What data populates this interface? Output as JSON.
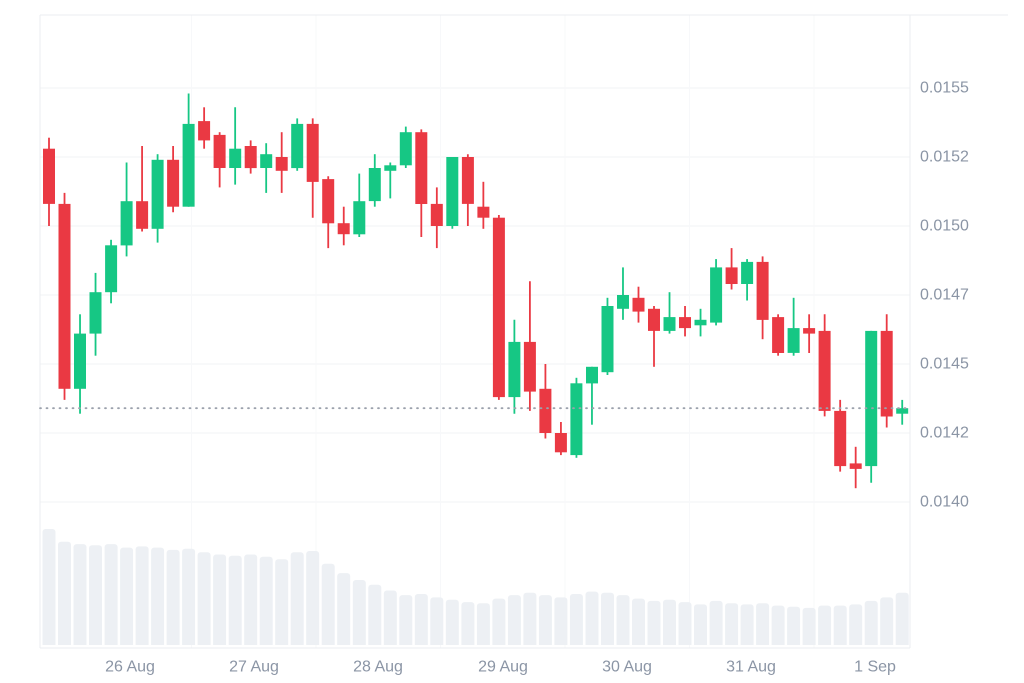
{
  "colors": {
    "up": "#16c784",
    "down": "#ea3943",
    "volume": "#edf0f4",
    "grid": "#f2f3f5",
    "grid_faint": "#f7f8fa",
    "border": "#ebedf0",
    "axis_text": "#8b95a5",
    "dotted_line": "#9ba1ac",
    "background": "#ffffff"
  },
  "chart_data": {
    "type": "candlestick",
    "title": "",
    "xlabel": "",
    "ylabel": "",
    "grid": "horizontal",
    "legend": "none",
    "x_labels": [
      "26 Aug",
      "27 Aug",
      "28 Aug",
      "29 Aug",
      "30 Aug",
      "31 Aug",
      "1 Sep"
    ],
    "y_tick_labels": [
      "0.0155",
      "0.0152",
      "0.0150",
      "0.0147",
      "0.0145",
      "0.0142",
      "0.0140"
    ],
    "y_tick_prices": [
      0.0155,
      0.01525,
      0.015,
      0.01475,
      0.0145,
      0.01425,
      0.014
    ],
    "ylim": [
      0.014,
      0.0155
    ],
    "candles_per_day": 8,
    "current_price": 0.01434,
    "current_price_line_style": "dotted",
    "volume_pane": "relative_heights_normalized_to_max",
    "candles": [
      {
        "o": 0.01528,
        "h": 0.01532,
        "l": 0.015,
        "c": 0.01508,
        "v": 1.0
      },
      {
        "o": 0.01508,
        "h": 0.01512,
        "l": 0.01437,
        "c": 0.01441,
        "v": 0.89
      },
      {
        "o": 0.01441,
        "h": 0.01468,
        "l": 0.01432,
        "c": 0.01461,
        "v": 0.87
      },
      {
        "o": 0.01461,
        "h": 0.01483,
        "l": 0.01453,
        "c": 0.01476,
        "v": 0.86
      },
      {
        "o": 0.01476,
        "h": 0.01495,
        "l": 0.01472,
        "c": 0.01493,
        "v": 0.87
      },
      {
        "o": 0.01493,
        "h": 0.01523,
        "l": 0.01489,
        "c": 0.01509,
        "v": 0.84
      },
      {
        "o": 0.01509,
        "h": 0.01529,
        "l": 0.01498,
        "c": 0.01499,
        "v": 0.85
      },
      {
        "o": 0.01499,
        "h": 0.01526,
        "l": 0.01494,
        "c": 0.01524,
        "v": 0.84
      },
      {
        "o": 0.01524,
        "h": 0.01529,
        "l": 0.01505,
        "c": 0.01507,
        "v": 0.82
      },
      {
        "o": 0.01507,
        "h": 0.01548,
        "l": 0.01507,
        "c": 0.01537,
        "v": 0.83
      },
      {
        "o": 0.01538,
        "h": 0.01543,
        "l": 0.01528,
        "c": 0.01531,
        "v": 0.8
      },
      {
        "o": 0.01533,
        "h": 0.01534,
        "l": 0.01514,
        "c": 0.01521,
        "v": 0.78
      },
      {
        "o": 0.01521,
        "h": 0.01543,
        "l": 0.01515,
        "c": 0.01528,
        "v": 0.77
      },
      {
        "o": 0.01529,
        "h": 0.01531,
        "l": 0.01519,
        "c": 0.01521,
        "v": 0.78
      },
      {
        "o": 0.01521,
        "h": 0.0153,
        "l": 0.01512,
        "c": 0.01526,
        "v": 0.76
      },
      {
        "o": 0.01525,
        "h": 0.01534,
        "l": 0.01512,
        "c": 0.0152,
        "v": 0.74
      },
      {
        "o": 0.01521,
        "h": 0.01539,
        "l": 0.0152,
        "c": 0.01537,
        "v": 0.8
      },
      {
        "o": 0.01537,
        "h": 0.01539,
        "l": 0.01503,
        "c": 0.01516,
        "v": 0.81
      },
      {
        "o": 0.01517,
        "h": 0.01518,
        "l": 0.01492,
        "c": 0.01501,
        "v": 0.7
      },
      {
        "o": 0.01501,
        "h": 0.01507,
        "l": 0.01493,
        "c": 0.01497,
        "v": 0.62
      },
      {
        "o": 0.01497,
        "h": 0.01519,
        "l": 0.01496,
        "c": 0.01509,
        "v": 0.56
      },
      {
        "o": 0.01509,
        "h": 0.01526,
        "l": 0.01507,
        "c": 0.01521,
        "v": 0.52
      },
      {
        "o": 0.0152,
        "h": 0.01523,
        "l": 0.0151,
        "c": 0.01522,
        "v": 0.47
      },
      {
        "o": 0.01522,
        "h": 0.01536,
        "l": 0.01521,
        "c": 0.01534,
        "v": 0.43
      },
      {
        "o": 0.01534,
        "h": 0.01535,
        "l": 0.01496,
        "c": 0.01508,
        "v": 0.44
      },
      {
        "o": 0.01508,
        "h": 0.01514,
        "l": 0.01492,
        "c": 0.015,
        "v": 0.41
      },
      {
        "o": 0.015,
        "h": 0.01525,
        "l": 0.01499,
        "c": 0.01525,
        "v": 0.39
      },
      {
        "o": 0.01525,
        "h": 0.01526,
        "l": 0.015,
        "c": 0.01508,
        "v": 0.37
      },
      {
        "o": 0.01507,
        "h": 0.01516,
        "l": 0.01499,
        "c": 0.01503,
        "v": 0.36
      },
      {
        "o": 0.01503,
        "h": 0.01504,
        "l": 0.01437,
        "c": 0.01438,
        "v": 0.4
      },
      {
        "o": 0.01438,
        "h": 0.01466,
        "l": 0.01432,
        "c": 0.01458,
        "v": 0.43
      },
      {
        "o": 0.01458,
        "h": 0.0148,
        "l": 0.01433,
        "c": 0.0144,
        "v": 0.45
      },
      {
        "o": 0.01441,
        "h": 0.0145,
        "l": 0.01423,
        "c": 0.01425,
        "v": 0.43
      },
      {
        "o": 0.01425,
        "h": 0.01429,
        "l": 0.01417,
        "c": 0.01418,
        "v": 0.41
      },
      {
        "o": 0.01417,
        "h": 0.01445,
        "l": 0.01416,
        "c": 0.01443,
        "v": 0.44
      },
      {
        "o": 0.01443,
        "h": 0.01449,
        "l": 0.01428,
        "c": 0.01449,
        "v": 0.46
      },
      {
        "o": 0.01447,
        "h": 0.01474,
        "l": 0.01446,
        "c": 0.01471,
        "v": 0.45
      },
      {
        "o": 0.0147,
        "h": 0.01485,
        "l": 0.01466,
        "c": 0.01475,
        "v": 0.43
      },
      {
        "o": 0.01474,
        "h": 0.01478,
        "l": 0.01465,
        "c": 0.01469,
        "v": 0.4
      },
      {
        "o": 0.0147,
        "h": 0.01471,
        "l": 0.01449,
        "c": 0.01462,
        "v": 0.38
      },
      {
        "o": 0.01462,
        "h": 0.01476,
        "l": 0.01461,
        "c": 0.01467,
        "v": 0.39
      },
      {
        "o": 0.01467,
        "h": 0.01471,
        "l": 0.0146,
        "c": 0.01463,
        "v": 0.37
      },
      {
        "o": 0.01464,
        "h": 0.0147,
        "l": 0.0146,
        "c": 0.01466,
        "v": 0.35
      },
      {
        "o": 0.01465,
        "h": 0.01488,
        "l": 0.01464,
        "c": 0.01485,
        "v": 0.38
      },
      {
        "o": 0.01485,
        "h": 0.01492,
        "l": 0.01477,
        "c": 0.01479,
        "v": 0.36
      },
      {
        "o": 0.01479,
        "h": 0.01488,
        "l": 0.01473,
        "c": 0.01487,
        "v": 0.35
      },
      {
        "o": 0.01487,
        "h": 0.01489,
        "l": 0.01459,
        "c": 0.01466,
        "v": 0.36
      },
      {
        "o": 0.01467,
        "h": 0.01468,
        "l": 0.01453,
        "c": 0.01454,
        "v": 0.34
      },
      {
        "o": 0.01454,
        "h": 0.01474,
        "l": 0.01453,
        "c": 0.01463,
        "v": 0.33
      },
      {
        "o": 0.01463,
        "h": 0.01468,
        "l": 0.01454,
        "c": 0.01461,
        "v": 0.32
      },
      {
        "o": 0.01462,
        "h": 0.01468,
        "l": 0.01431,
        "c": 0.01433,
        "v": 0.34
      },
      {
        "o": 0.01433,
        "h": 0.01437,
        "l": 0.01411,
        "c": 0.01413,
        "v": 0.34
      },
      {
        "o": 0.01414,
        "h": 0.0142,
        "l": 0.01405,
        "c": 0.01412,
        "v": 0.35
      },
      {
        "o": 0.01413,
        "h": 0.01462,
        "l": 0.01407,
        "c": 0.01462,
        "v": 0.38
      },
      {
        "o": 0.01462,
        "h": 0.01468,
        "l": 0.01427,
        "c": 0.01431,
        "v": 0.41
      },
      {
        "o": 0.01432,
        "h": 0.01437,
        "l": 0.01428,
        "c": 0.01434,
        "v": 0.45
      }
    ]
  }
}
